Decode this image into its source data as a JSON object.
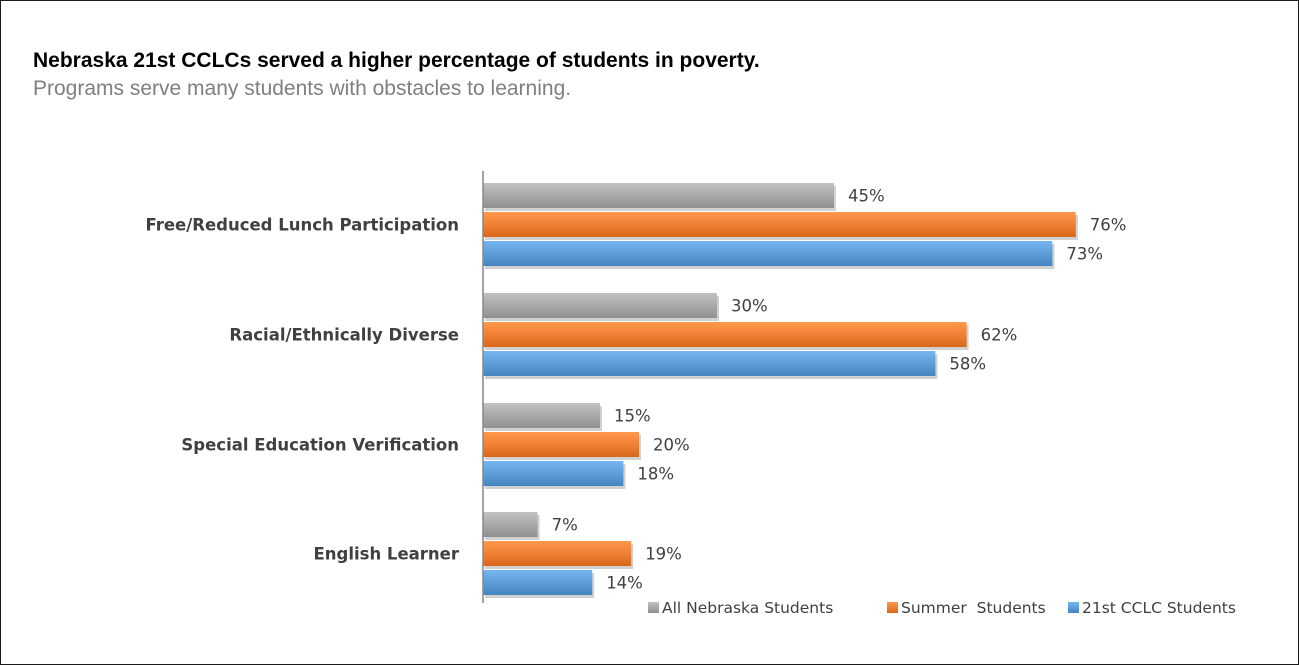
{
  "chart_data": {
    "type": "bar",
    "orientation": "horizontal",
    "title": "Nebraska 21st CCLCs served a higher percentage of students in poverty.",
    "subtitle": "Programs serve many students with obstacles to learning.",
    "categories": [
      "Free/Reduced Lunch Participation",
      "Racial/Ethnically Diverse",
      "Special Education Verification",
      "English Learner"
    ],
    "series": [
      {
        "name": "All Nebraska Students",
        "color": "#a6a6a6",
        "values": [
          45,
          30,
          15,
          7
        ],
        "labels": [
          "45%",
          "30%",
          "15%",
          "7%"
        ]
      },
      {
        "name": "Summer  Students",
        "color": "#ed7d31",
        "values": [
          76,
          62,
          20,
          19
        ],
        "labels": [
          "76%",
          "62%",
          "20%",
          "19%"
        ]
      },
      {
        "name": "21st CCLC Students",
        "color": "#5b9bd5",
        "values": [
          73,
          58,
          18,
          14
        ],
        "labels": [
          "73%",
          "58%",
          "18%",
          "14%"
        ]
      }
    ],
    "xlim": [
      0,
      100
    ],
    "grid": false,
    "legend": "bottom-right"
  }
}
